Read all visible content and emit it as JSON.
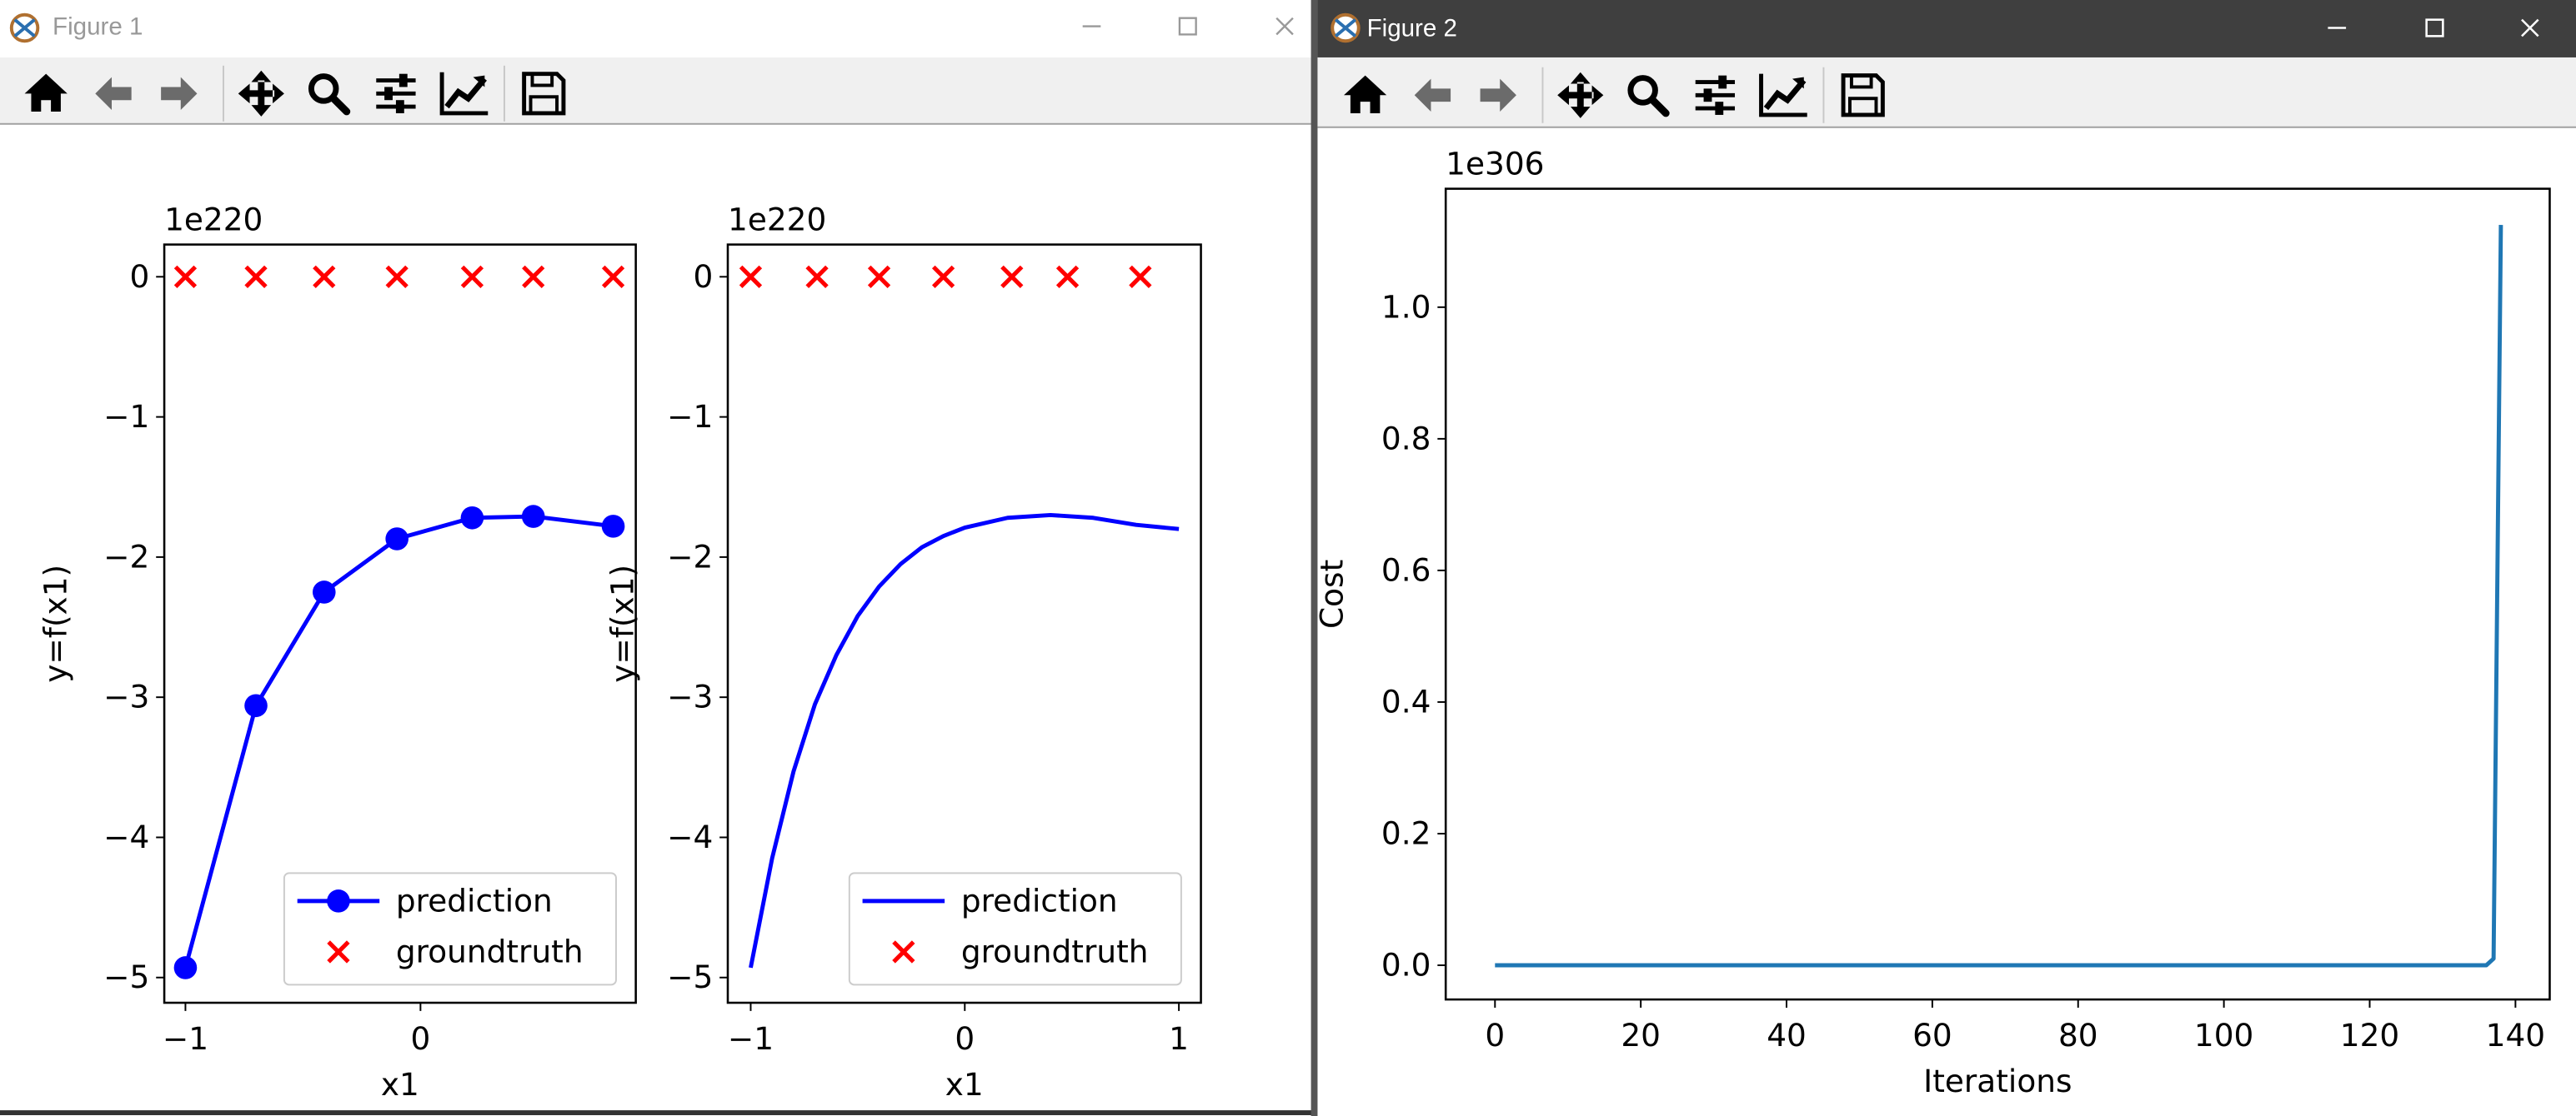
{
  "windows": [
    {
      "title": "Figure 1"
    },
    {
      "title": "Figure 2"
    }
  ],
  "chart_data": [
    {
      "type": "line",
      "xlabel": "x1",
      "ylabel": "y=f(x1)",
      "offset_text": "1e220",
      "xlim": [
        -1.09,
        0.916
      ],
      "xticks": [
        {
          "value": -1,
          "label": "−1"
        },
        0
      ],
      "ylim": [
        -5.18,
        0.23
      ],
      "yticks": [
        {
          "value": -5,
          "label": "−5"
        },
        {
          "value": -4,
          "label": "−4"
        },
        {
          "value": -3,
          "label": "−3"
        },
        {
          "value": -2,
          "label": "−2"
        },
        {
          "value": -1,
          "label": "−1"
        },
        0
      ],
      "legend": "lower right",
      "series": [
        {
          "name": "prediction",
          "color": "#0000ff",
          "marker": "o",
          "x": [
            -1,
            -0.7,
            -0.41,
            -0.1,
            0.22,
            0.48,
            0.82
          ],
          "values": [
            -4.93,
            -3.06,
            -2.25,
            -1.87,
            -1.72,
            -1.71,
            -1.78
          ]
        },
        {
          "name": "groundtruth",
          "type": "scatter",
          "color": "#ff0000",
          "marker": "x",
          "x": [
            -1,
            -0.7,
            -0.41,
            -0.1,
            0.22,
            0.48,
            0.82
          ],
          "values": [
            0,
            0,
            0,
            0,
            0,
            0,
            0
          ]
        }
      ]
    },
    {
      "type": "line",
      "xlabel": "x1",
      "ylabel": "y=f(x1)",
      "offset_text": "1e220",
      "xlim": [
        -1.107,
        1.103
      ],
      "xticks": [
        {
          "value": -1,
          "label": "−1"
        },
        0,
        1
      ],
      "ylim": [
        -5.18,
        0.23
      ],
      "yticks": [
        {
          "value": -5,
          "label": "−5"
        },
        {
          "value": -4,
          "label": "−4"
        },
        {
          "value": -3,
          "label": "−3"
        },
        {
          "value": -2,
          "label": "−2"
        },
        {
          "value": -1,
          "label": "−1"
        },
        0
      ],
      "legend": "lower right",
      "series": [
        {
          "name": "prediction",
          "color": "#0000ff",
          "x": [
            -1,
            -0.9,
            -0.8,
            -0.7,
            -0.6,
            -0.5,
            -0.4,
            -0.3,
            -0.2,
            -0.1,
            0,
            0.2,
            0.4,
            0.6,
            0.8,
            1
          ],
          "values": [
            -4.93,
            -4.15,
            -3.53,
            -3.05,
            -2.7,
            -2.42,
            -2.21,
            -2.05,
            -1.93,
            -1.85,
            -1.79,
            -1.72,
            -1.7,
            -1.72,
            -1.77,
            -1.8
          ]
        },
        {
          "name": "groundtruth",
          "type": "scatter",
          "color": "#ff0000",
          "marker": "x",
          "x": [
            -1,
            -0.69,
            -0.4,
            -0.1,
            0.22,
            0.48,
            0.82
          ],
          "values": [
            0,
            0,
            0,
            0,
            0,
            0,
            0
          ]
        }
      ]
    },
    {
      "type": "line",
      "xlabel": "Iterations",
      "ylabel": "Cost",
      "offset_text": "1e306",
      "xlim": [
        -6.76,
        144.7
      ],
      "xticks": [
        0,
        20,
        40,
        60,
        80,
        100,
        120,
        140
      ],
      "ylim": [
        -0.052,
        1.18
      ],
      "yticks": [
        {
          "value": 0,
          "label": "0.0"
        },
        {
          "value": 0.2,
          "label": "0.2"
        },
        {
          "value": 0.4,
          "label": "0.4"
        },
        {
          "value": 0.6,
          "label": "0.6"
        },
        {
          "value": 0.8,
          "label": "0.8"
        },
        {
          "value": 1,
          "label": "1.0"
        }
      ],
      "series": [
        {
          "color": "#1f77b4",
          "x": [
            0,
            136,
            137,
            138
          ],
          "values": [
            0,
            0,
            0.01,
            1.125
          ]
        }
      ]
    }
  ]
}
